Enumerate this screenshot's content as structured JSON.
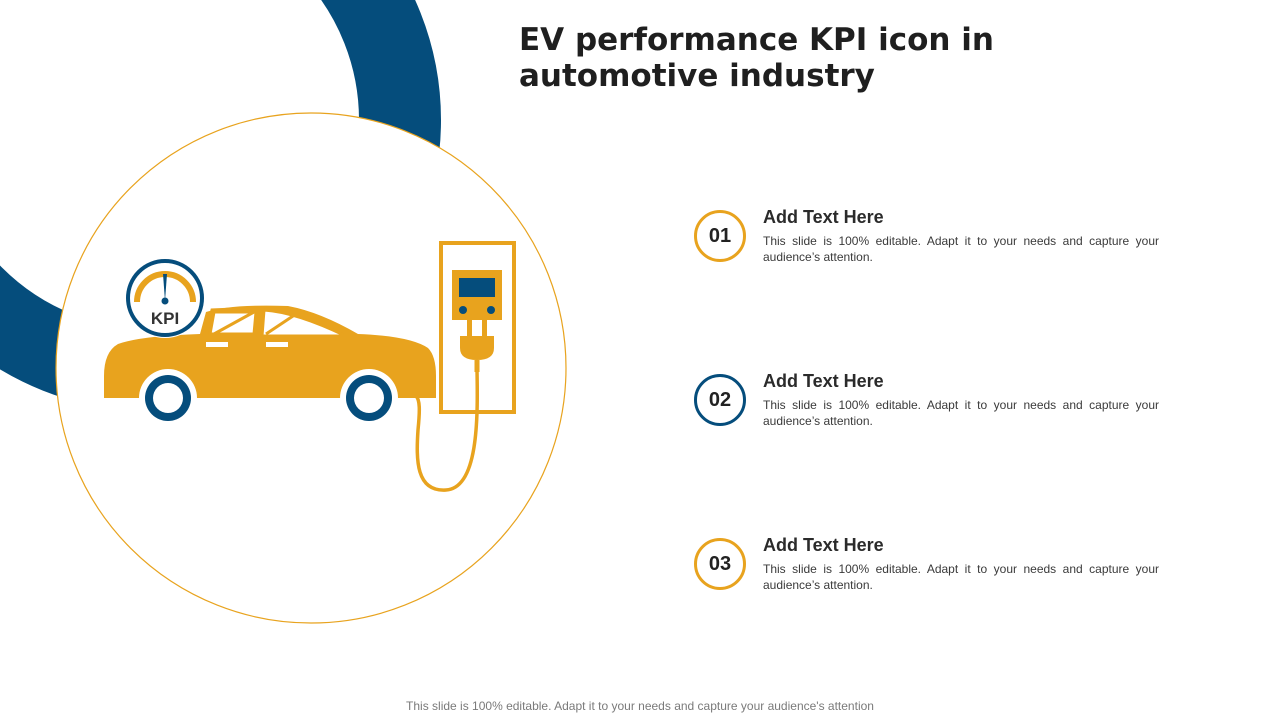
{
  "title": "EV performance KPI icon in automotive industry",
  "illustration": {
    "gauge_label": "KPI",
    "icons": [
      "electric-car-icon",
      "charging-station-icon",
      "kpi-gauge-icon"
    ]
  },
  "items": [
    {
      "number": "01",
      "heading": "Add Text Here",
      "body": "This slide is 100% editable. Adapt it to your needs and capture your audience’s attention."
    },
    {
      "number": "02",
      "heading": "Add Text Here",
      "body": "This slide is 100% editable. Adapt it to your needs and capture your audience’s attention."
    },
    {
      "number": "03",
      "heading": "Add Text Here",
      "body": "This slide is 100% editable. Adapt it to your needs and capture your audience’s attention."
    }
  ],
  "footer": "This slide is 100% editable. Adapt it to your needs and capture your audience's attention",
  "colors": {
    "accent_orange": "#E8A31E",
    "accent_blue": "#054D7C",
    "text_dark": "#1F1F1F"
  }
}
